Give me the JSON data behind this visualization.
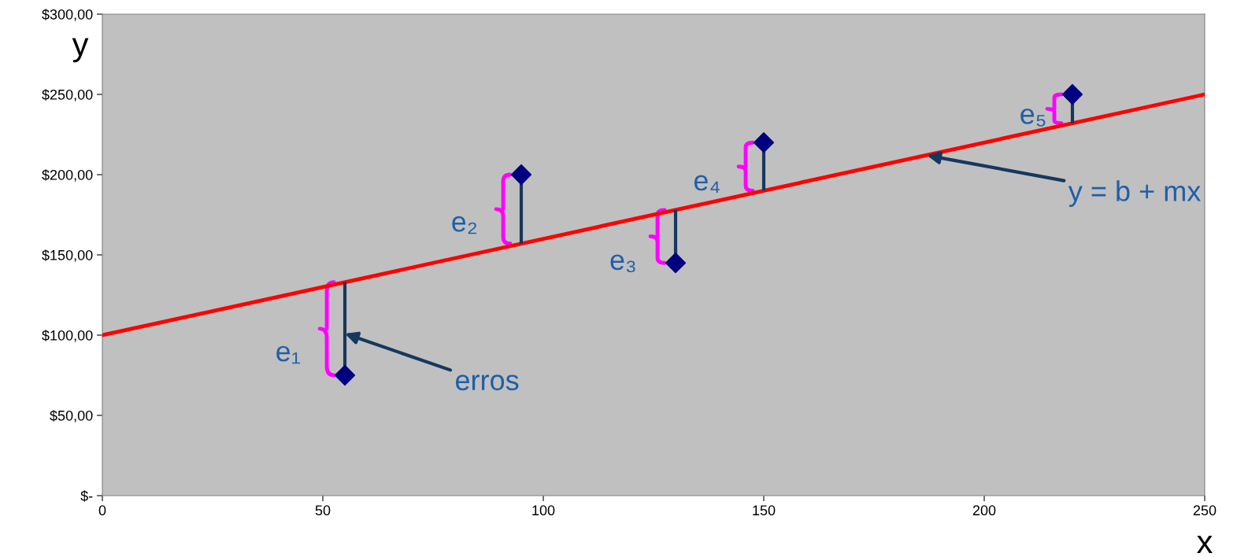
{
  "chart_data": {
    "type": "scatter",
    "xlabel": "x",
    "ylabel": "y",
    "xlim": [
      0,
      250
    ],
    "xticks": [
      0,
      50,
      100,
      150,
      200,
      250
    ],
    "ylim": [
      0,
      300
    ],
    "yticks": [
      {
        "value": 0,
        "label": "$-"
      },
      {
        "value": 50,
        "label": "$50,00"
      },
      {
        "value": 100,
        "label": "$100,00"
      },
      {
        "value": 150,
        "label": "$150,00"
      },
      {
        "value": 200,
        "label": "$200,00"
      },
      {
        "value": 250,
        "label": "$250,00"
      },
      {
        "value": 300,
        "label": "$300,00"
      }
    ],
    "grid": false,
    "series": [
      {
        "type": "line",
        "color": "#ff0000",
        "x": [
          0,
          250
        ],
        "values": [
          100,
          250
        ],
        "marker": "none"
      },
      {
        "type": "scatter",
        "color": "#000080",
        "marker": "diamond",
        "x": [
          55,
          95,
          130,
          150,
          220
        ],
        "values": [
          75,
          200,
          145,
          220,
          250
        ],
        "errors": [
          [
            75,
            133
          ],
          [
            157,
            200
          ],
          [
            145,
            178
          ],
          [
            190,
            220
          ],
          [
            232,
            250
          ]
        ]
      }
    ],
    "annotations": [
      {
        "text": "e₁",
        "x": 55,
        "y": 104
      },
      {
        "text": "e₂",
        "x": 95,
        "y": 178
      },
      {
        "text": "e₃",
        "x": 130,
        "y": 161
      },
      {
        "text": "e₄",
        "x": 150,
        "y": 205
      },
      {
        "text": "e₅",
        "x": 220,
        "y": 241
      },
      {
        "text": "erros",
        "x": 55,
        "y": 101
      },
      {
        "text": "y = b + mx",
        "x": 187,
        "y": 212
      }
    ]
  }
}
